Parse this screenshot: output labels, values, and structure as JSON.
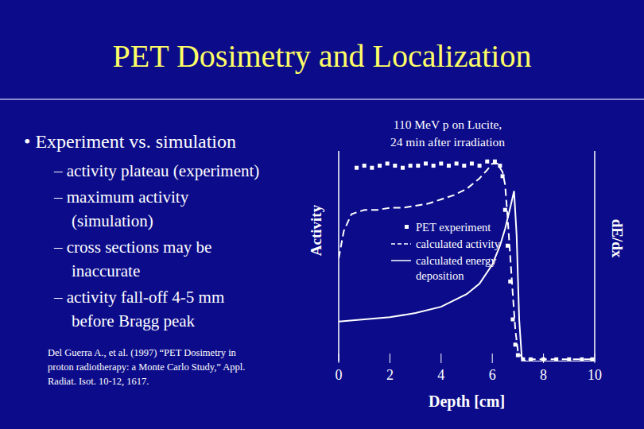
{
  "slide": {
    "title": "PET Dosimetry and Localization",
    "bullet": "• Experiment vs. simulation",
    "sub_bullets": [
      [
        "– activity plateau (experiment)"
      ],
      [
        "– maximum activity",
        "(simulation)"
      ],
      [
        "– cross sections may be",
        "inaccurate"
      ],
      [
        "– activity fall-off 4-5 mm",
        "before Bragg peak"
      ]
    ],
    "citation": [
      "Del Guerra A., et al. (1997) “PET  Dosimetry in",
      "proton radiotherapy: a Monte Carlo Study,” Appl.",
      "Radiat. Isot. 10-12, 1617."
    ]
  },
  "chart_data": {
    "type": "line",
    "x_label": "Depth [cm]",
    "y_label": "Activity",
    "y2_label": "dE/dx",
    "annotations": [
      "110 MeV p on Lucite,",
      "24 min after irradiation"
    ],
    "xlim": [
      0,
      10
    ],
    "xticks": [
      0,
      2,
      4,
      6,
      8,
      10
    ],
    "ylim": [
      0,
      100
    ],
    "y2lim": [
      0,
      100
    ],
    "tick_labels": "x",
    "legend": "center",
    "series": [
      {
        "name": "PET experiment",
        "type": "scatter",
        "marker": "square",
        "color": "#ffffff",
        "x": [
          0.7,
          1.0,
          1.3,
          1.6,
          1.9,
          2.2,
          2.5,
          2.8,
          3.1,
          3.4,
          3.7,
          4.0,
          4.3,
          4.6,
          4.9,
          5.2,
          5.5,
          5.8,
          6.1,
          6.3,
          6.4,
          6.5,
          6.6,
          6.7,
          6.8,
          6.9,
          7.0,
          7.2,
          7.5,
          8.0,
          8.5,
          9.0,
          9.5,
          9.9
        ],
        "values": [
          92,
          93,
          92,
          93,
          94,
          93,
          92,
          93,
          93,
          94,
          93,
          94,
          93,
          94,
          93,
          94,
          93,
          95,
          95,
          93,
          88,
          72,
          55,
          38,
          20,
          8,
          3,
          1,
          1,
          1,
          1,
          1,
          1,
          1
        ]
      },
      {
        "name": "calculated activity",
        "type": "line",
        "line_style": "dashed",
        "color": "#ffffff",
        "x": [
          0,
          0.2,
          0.5,
          1.0,
          1.5,
          2.0,
          2.5,
          3.0,
          3.5,
          4.0,
          4.5,
          5.0,
          5.5,
          5.8,
          6.0,
          6.2,
          6.4,
          6.5,
          6.6,
          6.7,
          6.8,
          6.9,
          7.0,
          7.2,
          8.0,
          9.0,
          10.0
        ],
        "values": [
          49,
          62,
          70,
          72,
          72,
          73,
          73,
          74,
          75,
          77,
          79,
          82,
          87,
          91,
          94,
          94,
          90,
          84,
          68,
          50,
          32,
          15,
          5,
          1,
          1,
          1,
          1
        ]
      },
      {
        "name": "calculated energy deposition",
        "type": "line",
        "line_style": "solid",
        "color": "#ffffff",
        "axis": "y2",
        "x": [
          0,
          1.0,
          2.0,
          3.0,
          4.0,
          4.5,
          5.0,
          5.5,
          6.0,
          6.3,
          6.5,
          6.7,
          6.85,
          6.95,
          7.05,
          7.15,
          7.3,
          8.0,
          9.0,
          10.0
        ],
        "values": [
          19,
          20,
          21,
          23,
          26,
          29,
          32,
          37,
          46,
          55,
          63,
          73,
          81,
          60,
          20,
          2,
          0,
          0,
          0,
          0
        ]
      }
    ]
  }
}
